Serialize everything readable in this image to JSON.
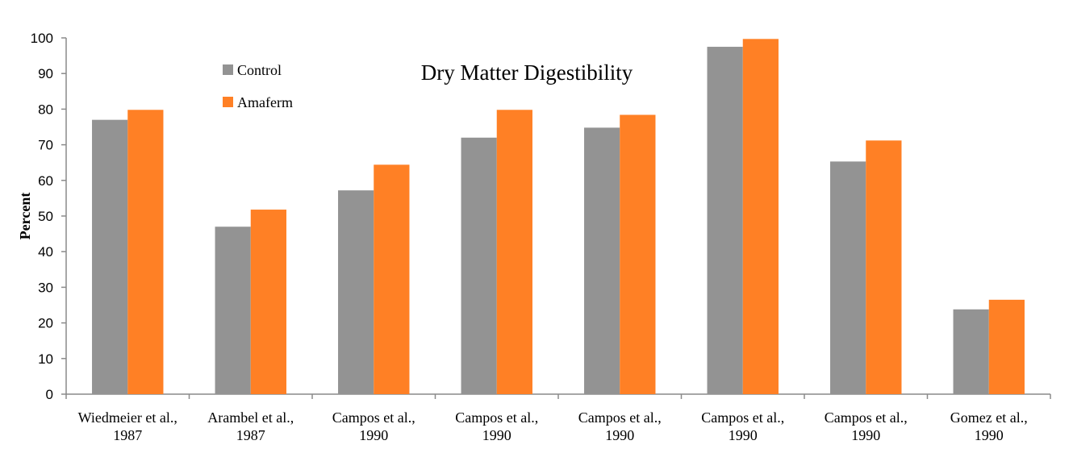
{
  "chart_data": {
    "type": "bar",
    "title": "Dry Matter Digestibility",
    "xlabel": "",
    "ylabel": "Percent",
    "ylim": [
      0,
      100
    ],
    "yticks": [
      0,
      10,
      20,
      30,
      40,
      50,
      60,
      70,
      80,
      90,
      100
    ],
    "grid": false,
    "legend_position": "top-left",
    "categories": [
      [
        "Wiedmeier et al.,",
        "1987"
      ],
      [
        "Arambel et al.,",
        "1987"
      ],
      [
        "Campos et al.,",
        "1990"
      ],
      [
        "Campos et al.,",
        "1990"
      ],
      [
        "Campos et al.,",
        "1990"
      ],
      [
        "Campos et al.,",
        "1990"
      ],
      [
        "Campos et al.,",
        "1990"
      ],
      [
        "Gomez et al.,",
        "1990"
      ]
    ],
    "series": [
      {
        "name": "Control",
        "color": "#939393",
        "values": [
          77,
          47,
          57.2,
          72,
          74.8,
          97.5,
          65.3,
          23.8
        ]
      },
      {
        "name": "Amaferm",
        "color": "#FF8025",
        "values": [
          79.8,
          51.8,
          64.4,
          79.8,
          78.4,
          99.7,
          71.2,
          26.5
        ]
      }
    ]
  }
}
